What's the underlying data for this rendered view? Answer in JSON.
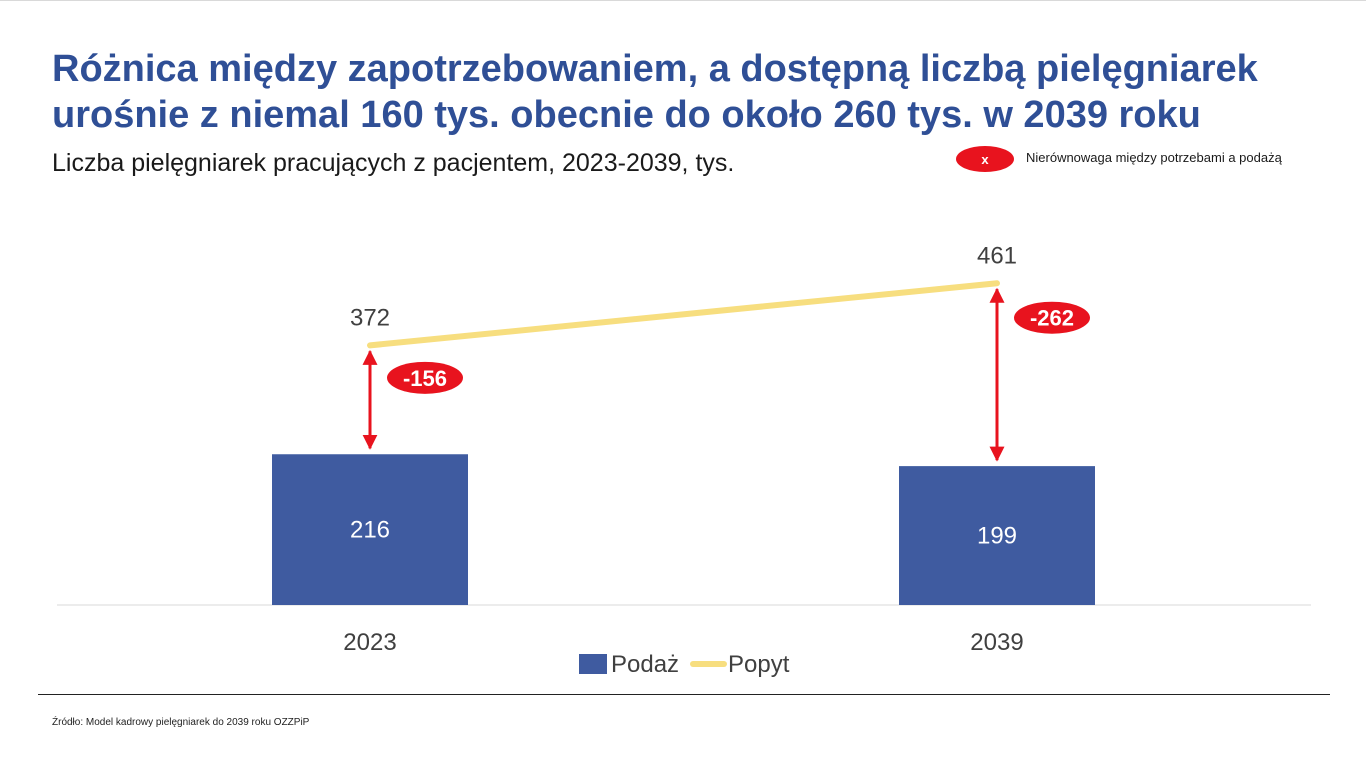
{
  "title": "Różnica między zapotrzebowaniem, a dostępną liczbą pielęgniarek urośnie z niemal 160 tys. obecnie do około 260 tys. w 2039 roku",
  "subtitle": "Liczba pielęgniarek pracujących z pacjentem, 2023-2039, tys.",
  "gap_legend": {
    "symbol": "x",
    "label": "Nierównowaga między potrzebami a podażą"
  },
  "source": "Źródło: Model kadrowy pielęgniarek do 2039 roku OZZPiP",
  "colors": {
    "title": "#2f4f96",
    "bar": "#3f5ba0",
    "line": "#f7de7f",
    "gap": "#e8131e"
  },
  "chart_data": {
    "type": "bar",
    "categories": [
      "2023",
      "2039"
    ],
    "series": [
      {
        "name": "Podaż",
        "type": "bar",
        "values": [
          216,
          199
        ]
      },
      {
        "name": "Popyt",
        "type": "line",
        "values": [
          372,
          461
        ]
      }
    ],
    "annotations": [
      {
        "category": "2023",
        "label": "-156"
      },
      {
        "category": "2039",
        "label": "-262"
      }
    ],
    "ylim": [
      0,
      480
    ],
    "legend": "bottom",
    "grid": false
  }
}
